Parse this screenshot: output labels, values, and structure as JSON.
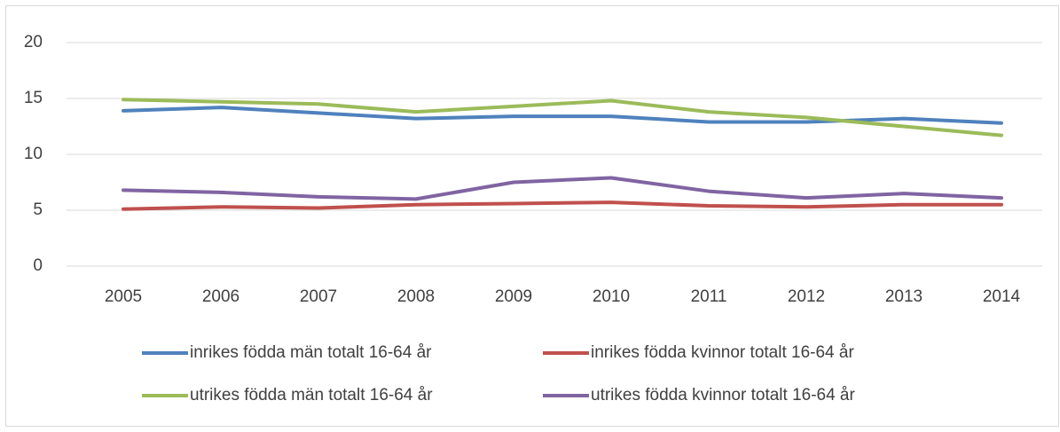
{
  "chart_data": {
    "type": "line",
    "categories": [
      "2005",
      "2006",
      "2007",
      "2008",
      "2009",
      "2010",
      "2011",
      "2012",
      "2013",
      "2014"
    ],
    "series": [
      {
        "name": "inrikes födda män totalt 16-64 år",
        "color": "#4f81bd",
        "values": [
          13.9,
          14.2,
          13.7,
          13.2,
          13.4,
          13.4,
          12.9,
          12.9,
          13.2,
          12.8
        ]
      },
      {
        "name": "inrikes födda kvinnor totalt 16-64 år",
        "color": "#c0504d",
        "values": [
          5.1,
          5.3,
          5.2,
          5.5,
          5.6,
          5.7,
          5.4,
          5.3,
          5.5,
          5.5
        ]
      },
      {
        "name": "utrikes födda män totalt 16-64 år",
        "color": "#9bbb59",
        "values": [
          14.9,
          14.7,
          14.5,
          13.8,
          14.3,
          14.8,
          13.8,
          13.3,
          12.5,
          11.7
        ]
      },
      {
        "name": "utrikes födda kvinnor totalt 16-64 år",
        "color": "#8064a2",
        "values": [
          6.8,
          6.6,
          6.2,
          6.0,
          7.5,
          7.9,
          6.7,
          6.1,
          6.5,
          6.1
        ]
      }
    ],
    "ylim": [
      0,
      20
    ],
    "yticks": [
      0,
      5,
      10,
      15,
      20
    ],
    "grid": true,
    "legend": "bottom"
  }
}
